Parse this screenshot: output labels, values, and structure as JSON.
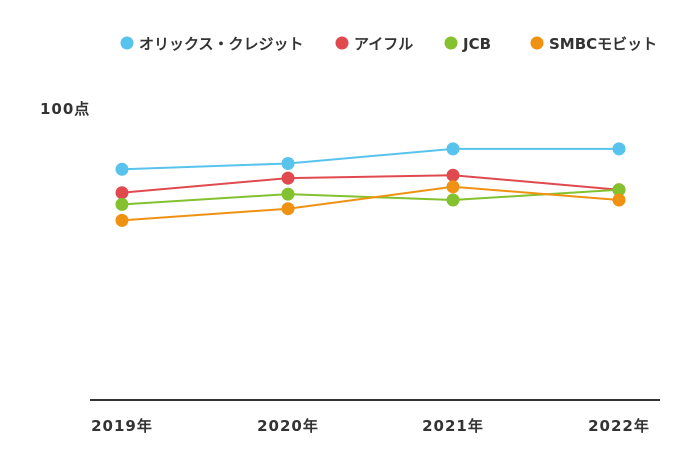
{
  "chart_data": {
    "type": "line",
    "title": "",
    "xlabel": "",
    "ylabel": "",
    "categories": [
      "2019年",
      "2020年",
      "2021年",
      "2022年"
    ],
    "y_max_label": "100点",
    "ylim": [
      0,
      100
    ],
    "grid": false,
    "legend_position": "top",
    "series": [
      {
        "name": "オリックス・クレジット",
        "color": "#58c3ec",
        "values": [
          79,
          81,
          86,
          86
        ]
      },
      {
        "name": "アイフル",
        "color": "#e04a4f",
        "values": [
          71,
          76,
          77,
          72
        ]
      },
      {
        "name": "JCB",
        "color": "#83c12e",
        "values": [
          67,
          70.5,
          68.5,
          72
        ]
      },
      {
        "name": "SMBCモビット",
        "color": "#ef9111",
        "values": [
          61.5,
          65.5,
          73,
          68.5
        ]
      }
    ]
  }
}
